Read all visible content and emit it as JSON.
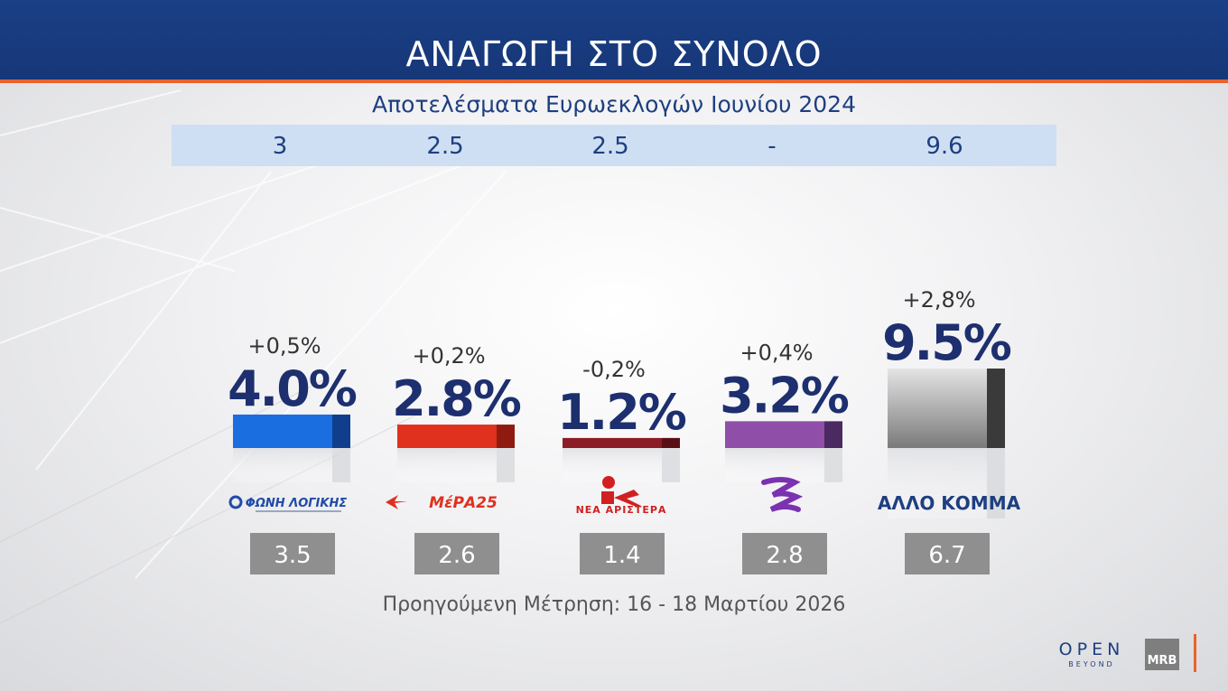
{
  "header": {
    "title": "ΑΝΑΓΩΓΗ ΣΤΟ ΣΥΝΟΛΟ"
  },
  "previous_elections": {
    "label": "Αποτελέσματα Ευρωεκλογών Ιουνίου 2024",
    "values": [
      "3",
      "2.5",
      "2.5",
      "-",
      "9.6"
    ]
  },
  "footer_note": "Προηγούμενη Μέτρηση: 16 - 18 Μαρτίου 2026",
  "logos": {
    "open_main": "OPEN",
    "open_sub": "BEYOND",
    "mrb": "MRB"
  },
  "chart_data": {
    "type": "bar",
    "categories": [
      "ΦΩΝΗ ΛΟΓΙΚΗΣ",
      "ΜέΡΑ25",
      "ΝΕΑ ΑΡΙΣΤΕΡΑ",
      "",
      "ΑΛΛΟ ΚΟΜΜΑ"
    ],
    "values": [
      4.0,
      2.8,
      1.2,
      3.2,
      9.5
    ],
    "value_labels": [
      "4.0%",
      "2.8%",
      "1.2%",
      "3.2%",
      "9.5%"
    ],
    "change_labels": [
      "+0,5%",
      "+0,2%",
      "-0,2%",
      "+0,4%",
      "+2,8%"
    ],
    "previous_values": [
      "3.5",
      "2.6",
      "1.4",
      "2.8",
      "6.7"
    ],
    "colors": [
      "#1a6ee0",
      "#e0301e",
      "#8c1c26",
      "#8f4fa8",
      "#8a8a8a"
    ],
    "side_colors": [
      "#0f3f8c",
      "#8f1a10",
      "#5a0f16",
      "#4a2a60",
      "#3a3a3a"
    ],
    "logo_colors": [
      "#1f4aa8",
      "#e0301e",
      "#d02020",
      "#7a32b0",
      "#1e3f80"
    ],
    "ylim": [
      0,
      10
    ]
  }
}
